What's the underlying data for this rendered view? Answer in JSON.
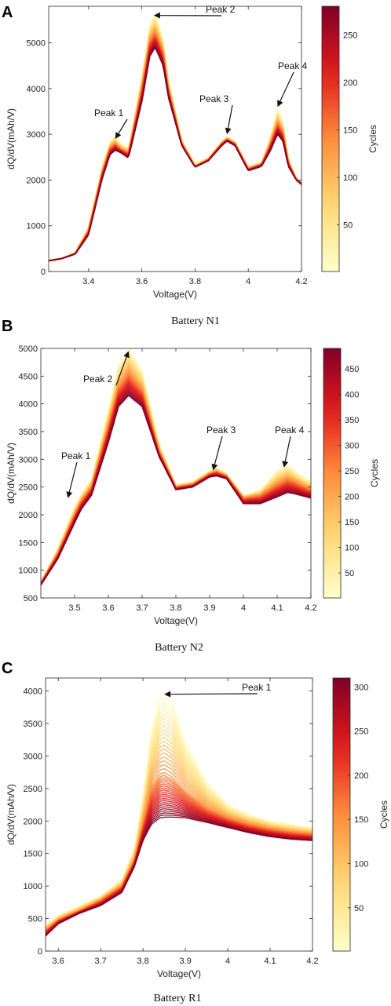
{
  "chart_data": [
    {
      "type": "line",
      "panel_label": "A",
      "caption": "Battery N1",
      "xlabel": "Voltage(V)",
      "ylabel": "dQ/dV(mAh/V)",
      "xlim": [
        3.25,
        4.2
      ],
      "ylim": [
        0,
        5800
      ],
      "xticks": [
        3.4,
        3.6,
        3.8,
        4,
        4.2
      ],
      "xtick_labels": [
        "3.4",
        "3.6",
        "3.8",
        "4",
        "4.2"
      ],
      "yticks": [
        0,
        1000,
        2000,
        3000,
        4000,
        5000
      ],
      "ytick_labels": [
        "0",
        "1000",
        "2000",
        "3000",
        "4000",
        "5000"
      ],
      "colorbar": {
        "label": "Cycles",
        "min": 1,
        "max": 280,
        "ticks": [
          50,
          100,
          150,
          200,
          250
        ],
        "tick_labels": [
          "50",
          "100",
          "150",
          "200",
          "250"
        ]
      },
      "annotations": [
        {
          "text": "Peak 1",
          "x": 3.5,
          "y": 2900
        },
        {
          "text": "Peak 2",
          "x": 3.645,
          "y": 5600
        },
        {
          "text": "Peak 3",
          "x": 3.92,
          "y": 3000
        },
        {
          "text": "Peak 4",
          "x": 4.11,
          "y": 3600
        }
      ],
      "series": [
        {
          "cycle": 1,
          "x": [
            3.25,
            3.3,
            3.35,
            3.4,
            3.45,
            3.48,
            3.5,
            3.52,
            3.55,
            3.6,
            3.63,
            3.65,
            3.68,
            3.7,
            3.75,
            3.8,
            3.85,
            3.9,
            3.92,
            3.95,
            4.0,
            4.05,
            4.08,
            4.11,
            4.13,
            4.15,
            4.18,
            4.2
          ],
          "y": [
            250,
            300,
            420,
            1000,
            2300,
            2850,
            2950,
            2800,
            2700,
            4300,
            5400,
            5650,
            5100,
            4200,
            2900,
            2350,
            2500,
            2850,
            2950,
            2850,
            2300,
            2400,
            2900,
            3550,
            3300,
            2500,
            2050,
            1950
          ]
        },
        {
          "cycle": 140,
          "x": [
            3.25,
            3.3,
            3.35,
            3.4,
            3.45,
            3.48,
            3.5,
            3.52,
            3.55,
            3.6,
            3.63,
            3.65,
            3.68,
            3.7,
            3.75,
            3.8,
            3.85,
            3.9,
            3.92,
            3.95,
            4.0,
            4.05,
            4.08,
            4.11,
            4.13,
            4.15,
            4.18,
            4.2
          ],
          "y": [
            240,
            290,
            400,
            900,
            2150,
            2700,
            2800,
            2680,
            2600,
            4000,
            5050,
            5250,
            4800,
            4000,
            2800,
            2300,
            2450,
            2800,
            2900,
            2800,
            2250,
            2350,
            2750,
            3250,
            3050,
            2400,
            2020,
            1930
          ]
        },
        {
          "cycle": 280,
          "x": [
            3.25,
            3.3,
            3.35,
            3.4,
            3.45,
            3.48,
            3.5,
            3.52,
            3.55,
            3.6,
            3.63,
            3.65,
            3.68,
            3.7,
            3.75,
            3.8,
            3.85,
            3.9,
            3.92,
            3.95,
            4.0,
            4.05,
            4.08,
            4.11,
            4.13,
            4.15,
            4.18,
            4.2
          ],
          "y": [
            230,
            280,
            380,
            800,
            2000,
            2550,
            2650,
            2600,
            2480,
            3700,
            4700,
            4900,
            4500,
            3800,
            2750,
            2280,
            2420,
            2750,
            2850,
            2750,
            2200,
            2300,
            2600,
            3000,
            2850,
            2300,
            2000,
            1900
          ]
        }
      ]
    },
    {
      "type": "line",
      "panel_label": "B",
      "caption": "Battery N2",
      "xlabel": "Voltage(V)",
      "ylabel": "dQ/dV(mAh/V)",
      "xlim": [
        3.4,
        4.2
      ],
      "ylim": [
        500,
        5000
      ],
      "xticks": [
        3.5,
        3.6,
        3.7,
        3.8,
        3.9,
        4,
        4.1,
        4.2
      ],
      "xtick_labels": [
        "3.5",
        "3.6",
        "3.7",
        "3.8",
        "3.9",
        "4",
        "4.1",
        "4.2"
      ],
      "yticks": [
        500,
        1000,
        1500,
        2000,
        2500,
        3000,
        3500,
        4000,
        4500,
        5000
      ],
      "ytick_labels": [
        "500",
        "1000",
        "1500",
        "2000",
        "2500",
        "3000",
        "3500",
        "4000",
        "4500",
        "5000"
      ],
      "colorbar": {
        "label": "Cycles",
        "min": 1,
        "max": 490,
        "ticks": [
          50,
          100,
          150,
          200,
          250,
          300,
          350,
          400,
          450
        ],
        "tick_labels": [
          "50",
          "100",
          "150",
          "200",
          "250",
          "300",
          "350",
          "400",
          "450"
        ]
      },
      "annotations": [
        {
          "text": "Peak 1",
          "x": 3.48,
          "y": 2300
        },
        {
          "text": "Peak 2",
          "x": 3.66,
          "y": 4950
        },
        {
          "text": "Peak 3",
          "x": 3.91,
          "y": 2800
        },
        {
          "text": "Peak 4",
          "x": 4.12,
          "y": 2850
        }
      ],
      "series": [
        {
          "cycle": 1,
          "x": [
            3.4,
            3.45,
            3.5,
            3.52,
            3.55,
            3.6,
            3.63,
            3.66,
            3.7,
            3.75,
            3.8,
            3.85,
            3.9,
            3.92,
            3.95,
            4.0,
            4.05,
            4.1,
            4.13,
            4.15,
            4.2
          ],
          "y": [
            800,
            1400,
            2150,
            2380,
            2650,
            3900,
            4700,
            5000,
            4600,
            3300,
            2550,
            2600,
            2800,
            2850,
            2750,
            2350,
            2450,
            2800,
            2900,
            2800,
            2600
          ]
        },
        {
          "cycle": 245,
          "x": [
            3.4,
            3.45,
            3.5,
            3.52,
            3.55,
            3.6,
            3.63,
            3.66,
            3.7,
            3.75,
            3.8,
            3.85,
            3.9,
            3.92,
            3.95,
            4.0,
            4.05,
            4.1,
            4.13,
            4.15,
            4.2
          ],
          "y": [
            770,
            1300,
            2000,
            2250,
            2500,
            3600,
            4300,
            4560,
            4250,
            3150,
            2500,
            2550,
            2740,
            2780,
            2700,
            2300,
            2350,
            2550,
            2650,
            2600,
            2450
          ]
        },
        {
          "cycle": 490,
          "x": [
            3.4,
            3.45,
            3.5,
            3.52,
            3.55,
            3.6,
            3.63,
            3.66,
            3.7,
            3.75,
            3.8,
            3.85,
            3.9,
            3.92,
            3.95,
            4.0,
            4.05,
            4.1,
            4.13,
            4.15,
            4.2
          ],
          "y": [
            730,
            1200,
            1850,
            2100,
            2350,
            3300,
            3950,
            4150,
            3950,
            3050,
            2450,
            2500,
            2680,
            2700,
            2650,
            2200,
            2200,
            2320,
            2400,
            2380,
            2300
          ]
        }
      ]
    },
    {
      "type": "line",
      "panel_label": "C",
      "caption": "Battery R1",
      "xlabel": "Voltage(V)",
      "ylabel": "dQ/dV(mAh/V)",
      "xlim": [
        3.57,
        4.2
      ],
      "ylim": [
        0,
        4200
      ],
      "xticks": [
        3.6,
        3.7,
        3.8,
        3.9,
        4,
        4.1,
        4.2
      ],
      "xtick_labels": [
        "3.6",
        "3.7",
        "3.8",
        "3.9",
        "4",
        "4.1",
        "4.2"
      ],
      "yticks": [
        0,
        500,
        1000,
        1500,
        2000,
        2500,
        3000,
        3500,
        4000
      ],
      "ytick_labels": [
        "0",
        "500",
        "1000",
        "1500",
        "2000",
        "2500",
        "3000",
        "3500",
        "4000"
      ],
      "colorbar": {
        "label": "Cycles",
        "min": 1,
        "max": 310,
        "ticks": [
          50,
          100,
          150,
          200,
          250,
          300
        ],
        "tick_labels": [
          "50",
          "100",
          "150",
          "200",
          "250",
          "300"
        ]
      },
      "annotations": [
        {
          "text": "Peak 1",
          "x": 3.85,
          "y": 3950
        }
      ],
      "series": [
        {
          "cycle": 1,
          "x": [
            3.57,
            3.6,
            3.65,
            3.7,
            3.75,
            3.78,
            3.8,
            3.82,
            3.84,
            3.85,
            3.87,
            3.9,
            3.95,
            4.0,
            4.05,
            4.1,
            4.15,
            4.2
          ],
          "y": [
            400,
            550,
            700,
            850,
            1100,
            1600,
            2400,
            3400,
            3900,
            3950,
            3800,
            3200,
            2600,
            2250,
            2100,
            2000,
            1950,
            1900
          ]
        },
        {
          "cycle": 155,
          "x": [
            3.57,
            3.6,
            3.65,
            3.7,
            3.75,
            3.78,
            3.8,
            3.82,
            3.84,
            3.85,
            3.87,
            3.9,
            3.95,
            4.0,
            4.05,
            4.1,
            4.15,
            4.2
          ],
          "y": [
            320,
            480,
            620,
            780,
            1000,
            1400,
            1950,
            2500,
            2700,
            2720,
            2650,
            2450,
            2200,
            2050,
            1950,
            1880,
            1830,
            1800
          ]
        },
        {
          "cycle": 310,
          "x": [
            3.57,
            3.6,
            3.65,
            3.7,
            3.75,
            3.78,
            3.8,
            3.82,
            3.84,
            3.85,
            3.87,
            3.9,
            3.95,
            4.0,
            4.05,
            4.1,
            4.15,
            4.2
          ],
          "y": [
            230,
            420,
            580,
            700,
            900,
            1300,
            1700,
            1950,
            2050,
            2060,
            2060,
            2050,
            1980,
            1900,
            1820,
            1760,
            1720,
            1700
          ]
        }
      ]
    }
  ]
}
